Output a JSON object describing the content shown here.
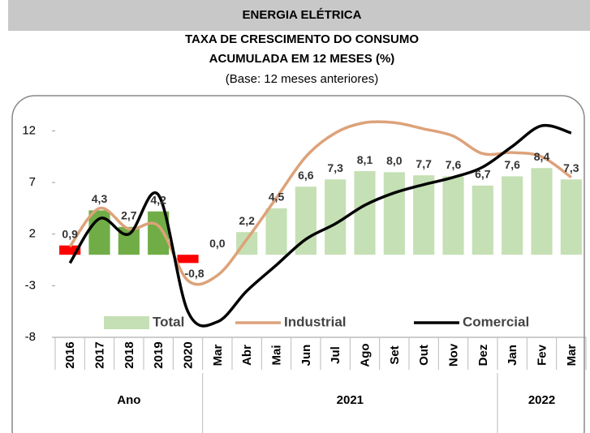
{
  "chart_data": {
    "type": "bar",
    "title": "ENERGIA ELÉTRICA",
    "subtitle": [
      "TAXA DE CRESCIMENTO DO CONSUMO",
      "ACUMULADA EM 12 MESES (%)"
    ],
    "note": "(Base: 12 meses anteriores)",
    "categories": [
      "2016",
      "2017",
      "2018",
      "2019",
      "2020",
      "Mar",
      "Abr",
      "Mai",
      "Jun",
      "Jul",
      "Ago",
      "Set",
      "Out",
      "Nov",
      "Dez",
      "Jan",
      "Fev",
      "Mar"
    ],
    "groups": [
      {
        "label": "Ano",
        "count": 5
      },
      {
        "label": "2021",
        "count": 10
      },
      {
        "label": "2022",
        "count": 3
      }
    ],
    "series": [
      {
        "name": "Total",
        "type": "bar",
        "values": [
          0.9,
          4.3,
          2.7,
          4.2,
          -0.8,
          0.0,
          2.2,
          4.5,
          6.6,
          7.3,
          8.1,
          8.0,
          7.7,
          7.6,
          6.7,
          7.6,
          8.4,
          7.3
        ],
        "value_labels": [
          "0,9",
          "4,3",
          "2,7",
          "4,2",
          "-0,8",
          "0,0",
          "2,2",
          "4,5",
          "6,6",
          "7,3",
          "8,1",
          "8,0",
          "7,7",
          "7,6",
          "6,7",
          "7,6",
          "8,4",
          "7,3"
        ],
        "colors": [
          "#ff0000",
          "#70ad47",
          "#70ad47",
          "#70ad47",
          "#ff0000",
          "#c5e0b4",
          "#c5e0b4",
          "#c5e0b4",
          "#c5e0b4",
          "#c5e0b4",
          "#c5e0b4",
          "#c5e0b4",
          "#c5e0b4",
          "#c5e0b4",
          "#c5e0b4",
          "#c5e0b4",
          "#c5e0b4",
          "#c5e0b4"
        ]
      },
      {
        "name": "Industrial",
        "type": "line",
        "color": "#dda27a",
        "values": [
          0.8,
          4.5,
          2.5,
          2.8,
          -2.5,
          -2.0,
          1.5,
          5.5,
          9.5,
          11.8,
          12.8,
          12.8,
          12.2,
          11.5,
          9.8,
          9.9,
          9.5,
          7.5
        ]
      },
      {
        "name": "Comercial",
        "type": "line",
        "color": "#000000",
        "values": [
          -0.8,
          3.5,
          2.0,
          5.8,
          -5.5,
          -6.5,
          -3.5,
          -1.0,
          1.5,
          3.0,
          4.8,
          6.0,
          6.8,
          7.5,
          8.5,
          10.5,
          12.5,
          11.8
        ]
      }
    ],
    "ylim": [
      -8,
      14
    ],
    "yticks": [
      12,
      7,
      2,
      -3,
      -8
    ]
  }
}
